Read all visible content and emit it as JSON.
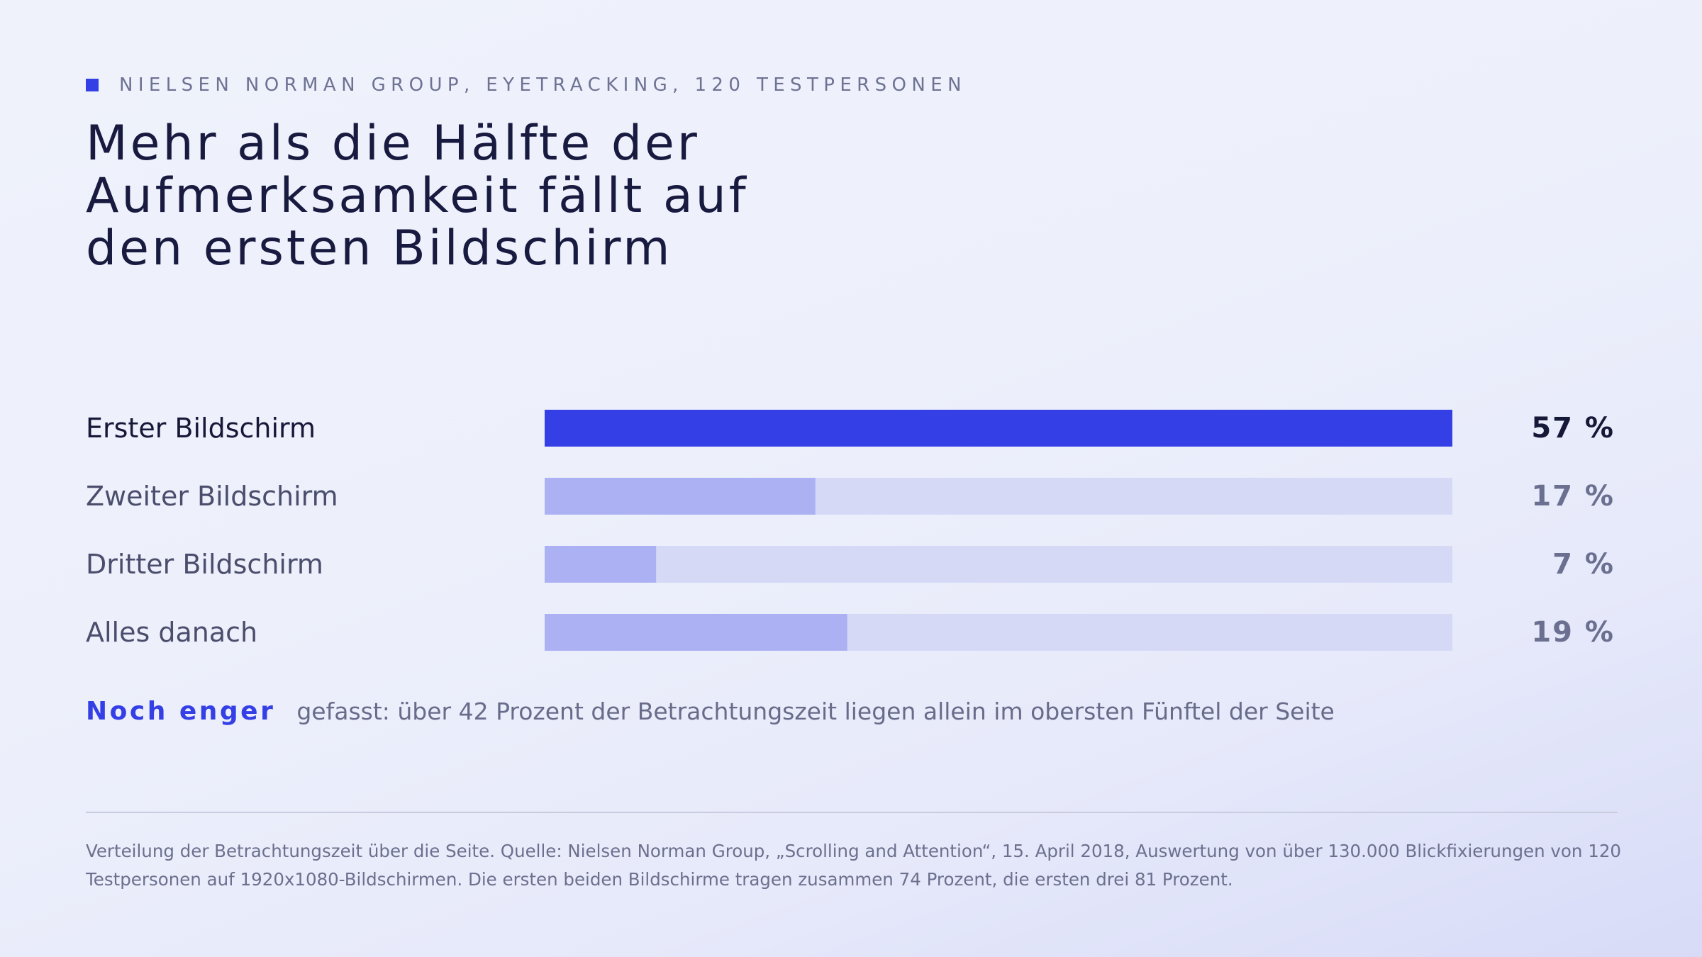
{
  "eyebrow": "NIELSEN NORMAN GROUP, EYETRACKING, 120 TESTPERSONEN",
  "title_lines": [
    "Mehr als die Hälfte der",
    "Aufmerksamkeit fällt auf",
    "den ersten Bildschirm"
  ],
  "colors": {
    "accent": "#3440e6",
    "bar_muted": "#abb1f2",
    "track": "#d5d9f6",
    "label_highlight": "#161838",
    "label_muted": "#4a4e6c",
    "value_highlight": "#161838",
    "value_muted": "#6c7090"
  },
  "chart_data": {
    "type": "bar",
    "orientation": "horizontal",
    "categories": [
      "Erster Bildschirm",
      "Zweiter Bildschirm",
      "Dritter Bildschirm",
      "Alles danach"
    ],
    "values": [
      57,
      17,
      7,
      19
    ],
    "value_labels": [
      "57 %",
      "17 %",
      "7 %",
      "19 %"
    ],
    "highlight_index": 0,
    "xlim": [
      0,
      57
    ],
    "grid": false,
    "legend": "none"
  },
  "note": {
    "emphasis": "Noch enger",
    "text": "gefasst: über 42 Prozent der Betrachtungszeit liegen allein im obersten Fünftel der Seite"
  },
  "source": "Verteilung der Betrachtungszeit über die Seite. Quelle: Nielsen Norman Group, „Scrolling and Attention“, 15. April 2018, Auswertung von über 130.000 Blickfixierungen von 120 Testpersonen auf 1920x1080-Bildschirmen. Die ersten beiden Bildschirme tragen zusammen 74 Prozent, die ersten drei 81 Prozent."
}
